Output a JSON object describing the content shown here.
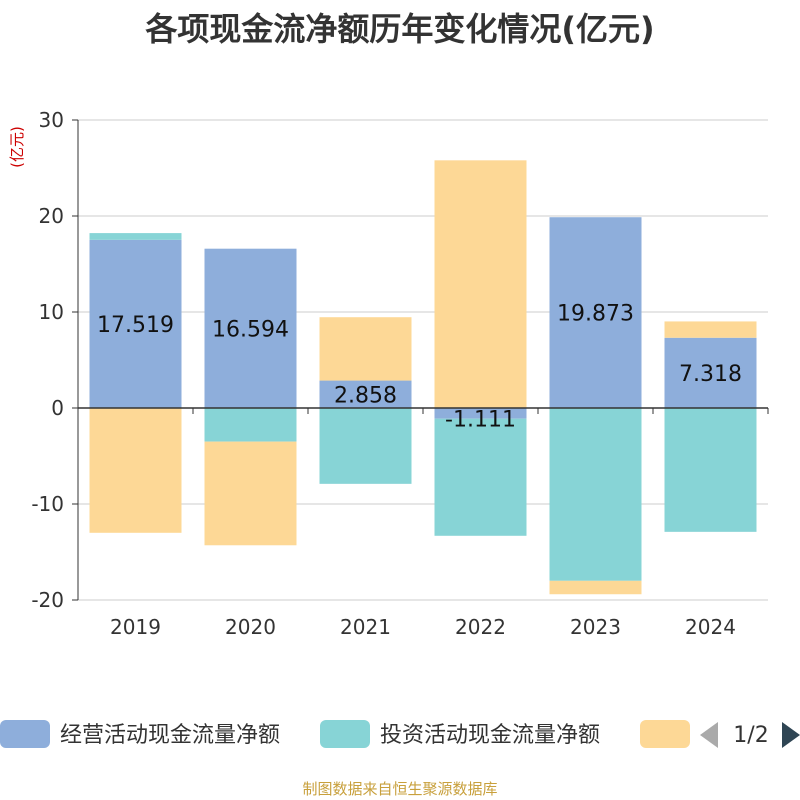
{
  "chart_data": {
    "type": "bar",
    "stacked": true,
    "title": "各项现金流净额历年变化情况(亿元)",
    "ylabel": "(亿元)",
    "xlabel": "",
    "ylim": [
      -20,
      30
    ],
    "yticks": [
      30,
      20,
      10,
      0,
      -10,
      -20
    ],
    "categories": [
      "2019",
      "2020",
      "2021",
      "2022",
      "2023",
      "2024"
    ],
    "series": [
      {
        "name": "经营活动现金流量净额",
        "color": "#8eaedb",
        "values": [
          17.519,
          16.594,
          2.858,
          -1.111,
          19.873,
          7.318
        ],
        "labels": [
          "17.519",
          "16.594",
          "2.858",
          "-1.111",
          "19.873",
          "7.318"
        ]
      },
      {
        "name": "投资活动现金流量净额",
        "color": "#87d4d6",
        "values": [
          0.7,
          -3.5,
          -7.9,
          -12.2,
          -18.0,
          -12.9
        ]
      },
      {
        "name": "",
        "color": "#fdd896",
        "values": [
          -13.0,
          -10.8,
          6.6,
          25.8,
          -1.4,
          1.7
        ]
      }
    ]
  },
  "legend": {
    "items": [
      {
        "label": "经营活动现金流量净额"
      },
      {
        "label": "投资活动现金流量净额"
      },
      {
        "label": ""
      }
    ],
    "page": "1/2"
  },
  "footer": "制图数据来自恒生聚源数据库"
}
